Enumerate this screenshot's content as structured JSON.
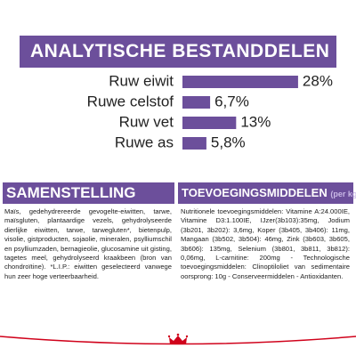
{
  "header": {
    "title": "ANALYTISCHE BESTANDDELEN"
  },
  "analysis": {
    "type": "bar",
    "color": "#6c4f9b",
    "categories": [
      "Ruw eiwit",
      "Ruwe celstof",
      "Ruw vet",
      "Ruwe as"
    ],
    "values": [
      28,
      6.7,
      13,
      5.8
    ],
    "value_labels": [
      "28%",
      "6,7%",
      "13%",
      "5,8%"
    ]
  },
  "composition": {
    "title": "SAMENSTELLING",
    "text": "Maïs, gedehydrereerde gevogelte-eiwitten, tarwe, maïsgluten, plantaardige vezels, gehydrolyseerde dierlijke eiwitten, tarwe, tarwegluten*, bietenpulp, visolie, gistproducten, sojaolie, mineralen, psylliumschil en psylliumzaden, bernagieolie, glucosamine uit gisting, tagetes meel, gehydrolyseerd kraakbeen (bron van chondroïtine). *L.I.P.: eiwitten geselecteerd vanwege hun zeer hoge verteerbaarheid."
  },
  "additives": {
    "title": "TOEVOEGINGSMIDDELEN",
    "unit": "(per kg)",
    "text": "Nutritionele toevoegingsmiddelen: Vitamine A:24.000IE, Vitamine D3:1.100IE, IJzer(3b103):35mg, Jodium (3b201, 3b202): 3,6mg, Koper (3b405, 3b406): 11mg, Mangaan (3b502, 3b504): 46mg, Zink (3b603, 3b605, 3b606): 135mg, Selenium (3b801, 3b811, 3b812): 0,06mg, L-carnitine: 200mg - Technologische toevoegingsmiddelen: Clinoptiloliet van sedimentaire oorsprong: 10g - Conserveermiddelen - Antioxidanten."
  }
}
